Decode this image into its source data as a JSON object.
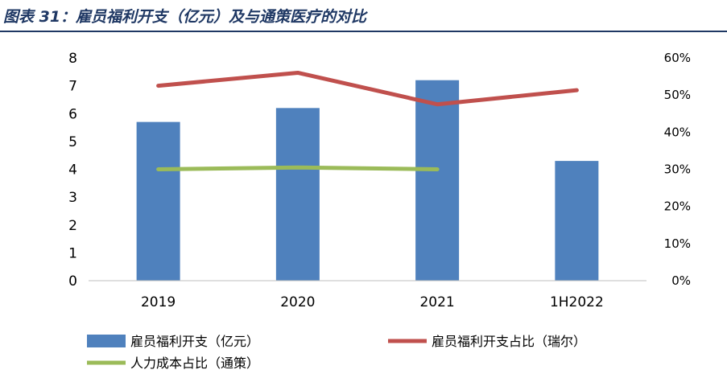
{
  "title": "图表 31：雇员福利开支（亿元）及与通策医疗的对比",
  "chart_data": {
    "type": "bar",
    "categories": [
      "2019",
      "2020",
      "2021",
      "1H2022"
    ],
    "series": [
      {
        "name": "雇员福利开支（亿元）",
        "type": "bar",
        "axis": "left",
        "color": "#4f81bd",
        "values": [
          5.7,
          6.2,
          7.2,
          4.3
        ]
      },
      {
        "name": "雇员福利开支占比（瑞尔）",
        "type": "line",
        "axis": "right",
        "color": "#c0504d",
        "values": [
          0.525,
          0.56,
          0.475,
          0.513
        ]
      },
      {
        "name": "人力成本占比（通策）",
        "type": "line",
        "axis": "right",
        "color": "#9bbb59",
        "values": [
          0.3,
          0.305,
          0.3,
          null
        ]
      }
    ],
    "left_axis": {
      "ylim": [
        0,
        8
      ],
      "ticks": [
        "0",
        "1",
        "2",
        "3",
        "4",
        "5",
        "6",
        "7",
        "8"
      ]
    },
    "right_axis": {
      "ylim": [
        0,
        0.6
      ],
      "ticks": [
        "0%",
        "10%",
        "20%",
        "30%",
        "40%",
        "50%",
        "60%"
      ]
    },
    "grid": false,
    "legend_position": "bottom"
  }
}
